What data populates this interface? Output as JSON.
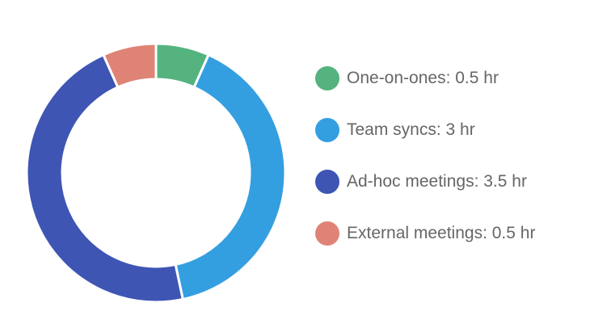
{
  "chart_data": {
    "type": "pie",
    "variant": "donut",
    "categories": [
      "One-on-ones",
      "Team syncs",
      "Ad-hoc meetings",
      "External meetings"
    ],
    "values": [
      0.5,
      3,
      3.5,
      0.5
    ],
    "unit": "hr",
    "colors": [
      "#54b37f",
      "#349fe0",
      "#3f55b4",
      "#df8376"
    ],
    "legend_position": "right",
    "legend": [
      {
        "label": "One-on-ones: 0.5 hr",
        "color": "#54b37f"
      },
      {
        "label": "Team syncs: 3 hr",
        "color": "#349fe0"
      },
      {
        "label": "Ad-hoc meetings: 3.5 hr",
        "color": "#3f55b4"
      },
      {
        "label": "External meetings: 0.5 hr",
        "color": "#df8376"
      }
    ]
  }
}
